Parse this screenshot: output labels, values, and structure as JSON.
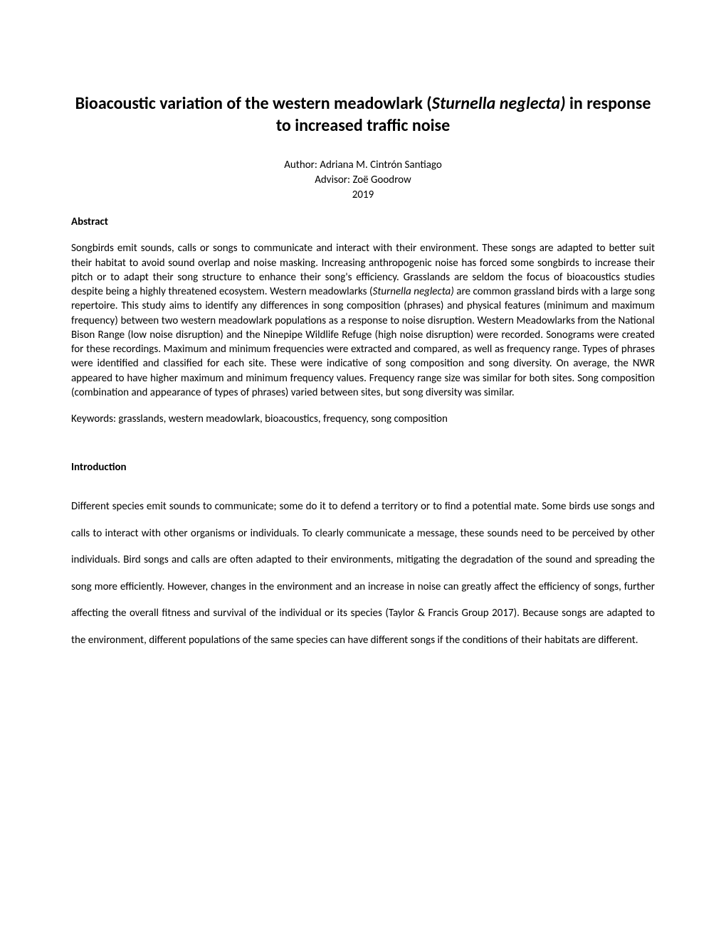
{
  "title": {
    "prefix": "Bioacoustic variation of the western meadowlark (",
    "italic": "Sturnella neglecta)",
    "suffix": " in response to increased traffic noise"
  },
  "author_line": "Author: Adriana M. Cintrón Santiago",
  "advisor_line": "Advisor: Zoë Goodrow",
  "year": "2019",
  "abstract_heading": "Abstract",
  "abstract_part1": "Songbirds emit sounds, calls or songs to communicate and interact with their environment. These songs are adapted to better suit their habitat to avoid sound overlap and noise masking. Increasing anthropogenic noise has forced some songbirds to increase their pitch or to adapt their song structure to enhance their song's efficiency. Grasslands are seldom the focus of bioacoustics studies despite being a highly threatened ecosystem. Western meadowlarks (",
  "abstract_italic": "Sturnella neglecta)",
  "abstract_part2": " are common grassland birds with a large song repertoire. This study aims to identify any differences in song composition (phrases) and physical features (minimum and maximum frequency) between two western meadowlark populations as a response to noise disruption. Western Meadowlarks from the National Bison Range (low noise disruption) and the Ninepipe Wildlife Refuge (high noise disruption) were recorded. Sonograms were created for these recordings. Maximum and minimum frequencies were extracted and compared, as well as frequency range. Types of phrases were identified and classified for each site. These were indicative of song composition and song diversity. On average, the NWR appeared to have higher maximum and minimum frequency values. Frequency range size was similar for both sites. Song composition (combination and appearance of types of phrases) varied between sites, but song diversity was similar.",
  "keywords": "Keywords: grasslands, western meadowlark, bioacoustics, frequency, song composition",
  "intro_heading": "Introduction",
  "intro_body": "Different species emit sounds to communicate; some do it to defend a territory or to find a potential mate. Some birds use songs and calls to interact with other organisms or individuals. To clearly communicate a message, these sounds need to be perceived by other individuals. Bird songs and calls are often adapted to their environments, mitigating the degradation of the sound and spreading the song more efficiently. However, changes in the environment and an increase in noise can greatly affect the efficiency of songs, further affecting the overall fitness and survival of the individual or its species (Taylor & Francis Group 2017). Because songs are adapted to the environment, different populations of the same species can have different songs if the conditions of their habitats are different."
}
